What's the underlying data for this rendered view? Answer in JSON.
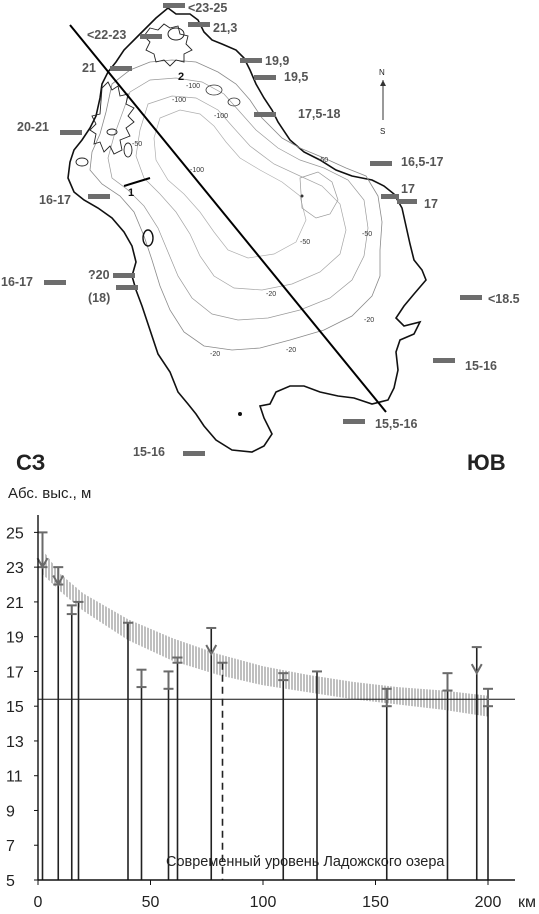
{
  "map": {
    "direction_nw": "СЗ",
    "direction_se": "ЮВ",
    "compass_n": "N",
    "compass_s": "S",
    "area_markers": [
      "1",
      "2"
    ],
    "level_labels": [
      "<23-25",
      "<22-23",
      "21,3",
      "21",
      "19,9",
      "19,5",
      "17,5-18",
      "20-21",
      "16,5-17",
      "16-17",
      "17",
      "17",
      "?20",
      "(18)",
      "16-17",
      "<18.5",
      "15-16",
      "15,5-16",
      "15-16"
    ]
  },
  "chart_data": {
    "type": "profile",
    "ylabel": "Абс. выс., м",
    "xunit": "км",
    "x_ticks": [
      0,
      50,
      100,
      150,
      200
    ],
    "y_ticks": [
      5,
      7,
      9,
      11,
      13,
      15,
      17,
      19,
      21,
      23,
      25
    ],
    "xlim": [
      0,
      212
    ],
    "ylim": [
      5,
      26
    ],
    "current_level_label": "Современный уровень Ладожского озера",
    "current_level": 15.4,
    "band_upper": [
      [
        2,
        24.0
      ],
      [
        10,
        22.6
      ],
      [
        20,
        21.5
      ],
      [
        40,
        20.0
      ],
      [
        60,
        18.9
      ],
      [
        80,
        18.0
      ],
      [
        100,
        17.3
      ],
      [
        120,
        16.8
      ],
      [
        140,
        16.4
      ],
      [
        160,
        16.1
      ],
      [
        180,
        15.9
      ],
      [
        200,
        15.6
      ]
    ],
    "band_lower": [
      [
        2,
        22.6
      ],
      [
        10,
        21.6
      ],
      [
        20,
        20.5
      ],
      [
        40,
        18.8
      ],
      [
        60,
        17.6
      ],
      [
        80,
        16.8
      ],
      [
        100,
        16.2
      ],
      [
        120,
        15.8
      ],
      [
        140,
        15.4
      ],
      [
        160,
        15.1
      ],
      [
        180,
        14.8
      ],
      [
        200,
        14.4
      ]
    ],
    "sites": [
      {
        "x": 2,
        "top": 25.0,
        "lower": 23.0,
        "arrow": true
      },
      {
        "x": 9,
        "top": 23.0,
        "lower": 22.0,
        "arrow": true
      },
      {
        "x": 15,
        "top": 20.8,
        "lower": 20.3
      },
      {
        "x": 18,
        "top": 21.0
      },
      {
        "x": 40,
        "top": 19.8
      },
      {
        "x": 46,
        "top": 17.1,
        "lower": 16.1
      },
      {
        "x": 58,
        "top": 17.0,
        "lower": 16.0
      },
      {
        "x": 62,
        "top": 17.8,
        "lower": 17.5
      },
      {
        "x": 77,
        "top": 19.5,
        "arrow": true
      },
      {
        "x": 82,
        "top": 17.5,
        "dashed": true
      },
      {
        "x": 109,
        "top": 16.9,
        "lower": 16.5
      },
      {
        "x": 124,
        "top": 17.0
      },
      {
        "x": 155,
        "top": 16.0,
        "lower": 15.0
      },
      {
        "x": 182,
        "top": 16.9,
        "lower": 15.9
      },
      {
        "x": 195,
        "top": 18.4,
        "arrow": true
      },
      {
        "x": 200,
        "top": 16.0,
        "lower": 15.0
      }
    ]
  }
}
